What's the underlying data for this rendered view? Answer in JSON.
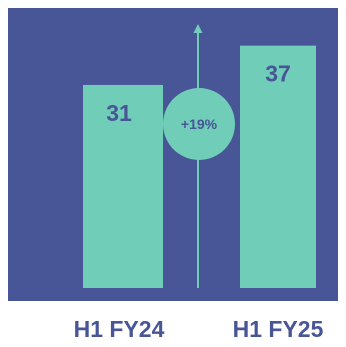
{
  "chart_data": {
    "type": "bar",
    "categories": [
      "H1 FY24",
      "H1 FY25"
    ],
    "values": [
      31,
      37
    ],
    "ylim": [
      0,
      40
    ],
    "annotation": "+19%",
    "grid": false
  },
  "colors": {
    "background": "#485596",
    "bar": "#6fcdb8",
    "value_text": "#485596",
    "category_text": "#485596",
    "growth_circle": "#6fcdb8",
    "growth_text": "#485596",
    "arrow": "#6fcdb8"
  }
}
